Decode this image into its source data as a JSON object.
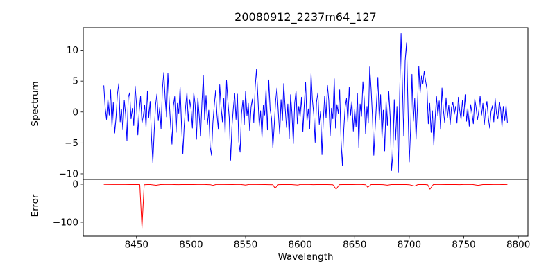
{
  "chart_data": {
    "type": "line",
    "title": "20080912_2237m64_127",
    "xlabel": "Wavelength",
    "grid": false,
    "legend": null,
    "xlim": [
      8401.2,
      8808.8
    ],
    "x_ticks": [
      8450,
      8500,
      8550,
      8600,
      8650,
      8700,
      8750,
      8800
    ],
    "panels": [
      {
        "name": "spectrum",
        "ylabel": "Spectrum",
        "ylim": [
          -10.9,
          13.65
        ],
        "y_ticks": [
          10,
          5,
          0,
          -5,
          -10
        ],
        "line_color": "#0000ff",
        "series": {
          "x0": 8420,
          "dx": 1.25,
          "values": [
            4.3,
            0.8,
            -1.2,
            2.1,
            -0.5,
            3.6,
            -2.4,
            1.5,
            -3.4,
            -0.8,
            2.8,
            4.6,
            -1.6,
            0.4,
            -2.9,
            1.9,
            -0.3,
            -4.6,
            2.4,
            3.1,
            -1.1,
            0.6,
            -2.2,
            4.2,
            1.3,
            -3.7,
            0.2,
            2.6,
            -1.8,
            -0.6,
            1.1,
            -2.5,
            3.4,
            -0.9,
            1.7,
            -4.2,
            -8.2,
            -3.1,
            1.2,
            2.9,
            -1.4,
            0.7,
            -2.7,
            3.8,
            6.4,
            2.2,
            -0.8,
            6.3,
            1.8,
            -2.1,
            -5.2,
            0.9,
            2.5,
            -3.3,
            1.4,
            -0.2,
            4.1,
            -1.9,
            -6.8,
            -2.3,
            0.8,
            3.2,
            -1.5,
            2.0,
            0.5,
            -2.6,
            3.1,
            1.2,
            -4.4,
            2.3,
            -0.7,
            -3.9,
            1.6,
            5.9,
            -1.3,
            2.7,
            -2.0,
            0.3,
            -5.6,
            -7.0,
            -1.8,
            1.0,
            3.5,
            -0.4,
            -2.8,
            4.4,
            0.9,
            -1.6,
            2.2,
            -3.5,
            5.1,
            1.7,
            -0.9,
            -7.8,
            -2.4,
            0.6,
            3.0,
            -1.2,
            2.9,
            -4.8,
            -6.5,
            -0.3,
            1.9,
            -2.1,
            3.3,
            -0.6,
            1.4,
            -3.0,
            0.8,
            2.1,
            -1.7,
            4.0,
            6.9,
            2.5,
            -2.3,
            0.2,
            -4.1,
            1.1,
            -0.5,
            3.7,
            -2.9,
            5.2,
            0.4,
            -1.0,
            -5.8,
            -2.2,
            1.8,
            3.9,
            -0.1,
            -3.6,
            2.0,
            -1.4,
            4.6,
            0.7,
            -2.5,
            1.3,
            -4.3,
            2.8,
            -0.2,
            -5.1,
            1.5,
            3.4,
            -1.9,
            0.9,
            -0.8,
            2.4,
            -3.2,
            1.0,
            4.8,
            -1.5,
            0.5,
            -2.7,
            6.2,
            2.0,
            -0.4,
            -4.9,
            1.6,
            3.1,
            -2.0,
            0.1,
            -6.9,
            -1.2,
            2.6,
            -0.9,
            4.3,
            1.9,
            -3.8,
            0.6,
            -1.1,
            5.4,
            -2.6,
            1.2,
            -0.3,
            3.6,
            -4.6,
            -8.7,
            -2.9,
            0.8,
            2.2,
            -1.6,
            4.0,
            -0.5,
            1.7,
            -3.1,
            0.4,
            -2.4,
            3.0,
            -5.7,
            1.3,
            -0.7,
            4.9,
            2.1,
            -3.5,
            0.9,
            -1.8,
            7.3,
            3.8,
            -0.6,
            -7.0,
            -2.5,
            1.5,
            5.6,
            -1.3,
            2.8,
            -4.2,
            0.3,
            -6.3,
            1.8,
            -2.2,
            3.3,
            -0.8,
            -9.5,
            -6.8,
            2.0,
            -4.5,
            0.9,
            -9.8,
            3.0,
            12.7,
            4.2,
            -3.9,
            8.3,
            11.2,
            1.6,
            -8.1,
            -2.7,
            6.1,
            -1.5,
            2.2,
            -4.4,
            0.8,
            7.4,
            3.1,
            5.8,
            4.6,
            6.6,
            5.0,
            3.7,
            -1.9,
            1.4,
            -3.3,
            0.2,
            -5.4,
            -1.1,
            2.5,
            -0.6,
            1.8,
            -2.8,
            3.9,
            0.5,
            -1.7,
            2.3,
            -0.9,
            1.1,
            -2.0,
            0.7,
            1.6,
            -0.4,
            0.9,
            -1.8,
            2.4,
            0.3,
            -1.2,
            1.9,
            -0.7,
            2.8,
            -1.5,
            0.6,
            -2.3,
            1.2,
            -0.1,
            -1.9,
            2.1,
            0.8,
            -1.3,
            0.2,
            2.6,
            -0.5,
            1.4,
            -2.1,
            0.4,
            1.7,
            -0.9,
            -2.6,
            0.1,
            1.0,
            -1.6,
            2.2,
            -0.3,
            -1.1,
            1.5,
            0.6,
            -2.4,
            0.9,
            -1.4,
            1.1,
            -1.7
          ]
        }
      },
      {
        "name": "error",
        "ylabel": "Error",
        "ylim": [
          -136.4,
          12.7
        ],
        "y_ticks": [
          0,
          -100
        ],
        "line_color": "#ff0000",
        "points": [
          [
            8420,
            -0.5
          ],
          [
            8428,
            -0.8
          ],
          [
            8436,
            -0.6
          ],
          [
            8444,
            -0.9
          ],
          [
            8450,
            -0.7
          ],
          [
            8453,
            -1.2
          ],
          [
            8455,
            -115
          ],
          [
            8457,
            -1.5
          ],
          [
            8462,
            -0.8
          ],
          [
            8468,
            -2.8
          ],
          [
            8472,
            -1.0
          ],
          [
            8480,
            -0.6
          ],
          [
            8488,
            -1.1
          ],
          [
            8495,
            -0.7
          ],
          [
            8502,
            -0.9
          ],
          [
            8510,
            -0.6
          ],
          [
            8518,
            -1.4
          ],
          [
            8520,
            -3.2
          ],
          [
            8523,
            -0.8
          ],
          [
            8530,
            -0.7
          ],
          [
            8538,
            -1.0
          ],
          [
            8545,
            -0.6
          ],
          [
            8550,
            -2.4
          ],
          [
            8553,
            -0.8
          ],
          [
            8560,
            -0.7
          ],
          [
            8568,
            -1.0
          ],
          [
            8575,
            -1.3
          ],
          [
            8577,
            -10.5
          ],
          [
            8580,
            -1.2
          ],
          [
            8586,
            -0.7
          ],
          [
            8592,
            -0.9
          ],
          [
            8598,
            -2.2
          ],
          [
            8600,
            -0.8
          ],
          [
            8607,
            -0.6
          ],
          [
            8612,
            -1.1
          ],
          [
            8618,
            -0.7
          ],
          [
            8625,
            -0.9
          ],
          [
            8630,
            -1.4
          ],
          [
            8633,
            -13
          ],
          [
            8636,
            -1.1
          ],
          [
            8642,
            -0.7
          ],
          [
            8648,
            -0.9
          ],
          [
            8655,
            -0.6
          ],
          [
            8660,
            -1.5
          ],
          [
            8662,
            -8
          ],
          [
            8665,
            -0.9
          ],
          [
            8670,
            -0.7
          ],
          [
            8676,
            -1.2
          ],
          [
            8680,
            -2.6
          ],
          [
            8684,
            -0.8
          ],
          [
            8690,
            -1.0
          ],
          [
            8696,
            -0.7
          ],
          [
            8700,
            -1.3
          ],
          [
            8705,
            -4.8
          ],
          [
            8708,
            -0.9
          ],
          [
            8714,
            -0.7
          ],
          [
            8717,
            -1.6
          ],
          [
            8719,
            -13
          ],
          [
            8722,
            -1.0
          ],
          [
            8728,
            -0.6
          ],
          [
            8734,
            -0.9
          ],
          [
            8740,
            -0.7
          ],
          [
            8746,
            -1.1
          ],
          [
            8752,
            -0.6
          ],
          [
            8758,
            -0.8
          ],
          [
            8763,
            -3.0
          ],
          [
            8768,
            -0.7
          ],
          [
            8774,
            -1.0
          ],
          [
            8780,
            -0.6
          ],
          [
            8785,
            -0.9
          ],
          [
            8790,
            -0.7
          ]
        ]
      }
    ],
    "colors": {
      "axis": "#000000",
      "background": "#ffffff"
    }
  }
}
